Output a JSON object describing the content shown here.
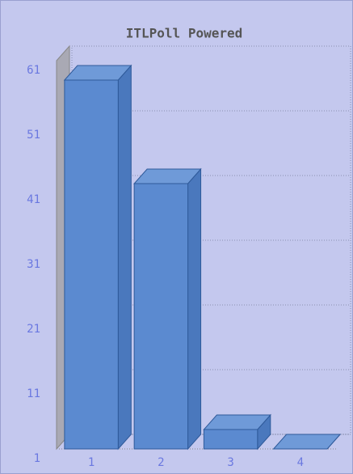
{
  "chart_data": {
    "type": "bar",
    "title": "ITLPoll Powered",
    "categories": [
      "1",
      "2",
      "3",
      "4"
    ],
    "values": [
      58,
      42,
      4,
      1
    ],
    "color": "#5b8ad0",
    "ylim": [
      1,
      61
    ],
    "yticks": [
      1,
      11,
      21,
      31,
      41,
      51,
      61
    ],
    "grid": true
  }
}
